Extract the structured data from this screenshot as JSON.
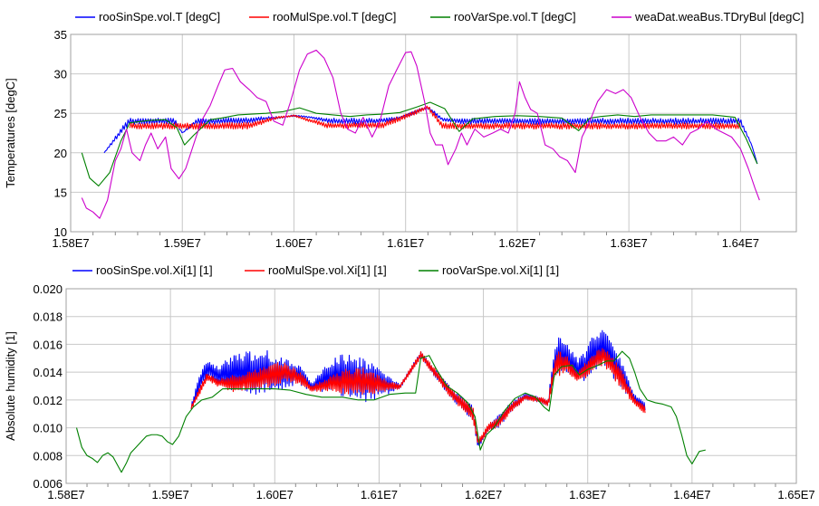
{
  "chart_data": [
    {
      "type": "line",
      "ylabel": "Temperatures [degC]",
      "xlim": [
        15800000,
        16450000
      ],
      "ylim": [
        10,
        35
      ],
      "xticks": [
        15800000,
        15900000,
        16000000,
        16100000,
        16200000,
        16300000,
        16400000
      ],
      "xtick_labels": [
        "1.58E7",
        "1.59E7",
        "1.60E7",
        "1.61E7",
        "1.62E7",
        "1.63E7",
        "1.64E7"
      ],
      "yticks": [
        10,
        15,
        20,
        25,
        30,
        35
      ],
      "ytick_labels": [
        "10",
        "15",
        "20",
        "25",
        "30",
        "35"
      ],
      "grid": true,
      "legend_position": "top",
      "series": [
        {
          "name": "rooSinSpe.vol.T [degC]",
          "color": "#0000ff",
          "envelope": true,
          "x": [
            15830000,
            15850000,
            15853000,
            15880000,
            15893000,
            15900000,
            15913000,
            15930000,
            15960000,
            15970000,
            15985000,
            16000000,
            16015000,
            16030000,
            16033000,
            16050000,
            16065000,
            16080000,
            16095000,
            16120000,
            16133000,
            16150000,
            16180000,
            16210000,
            16240000,
            16260000,
            16270000,
            16280000,
            16300000,
            16330000,
            16350000,
            16380000,
            16400000,
            16410000,
            16415000
          ],
          "low": [
            20.0,
            23.0,
            23.6,
            23.6,
            23.6,
            22.5,
            23.6,
            23.6,
            23.7,
            24.0,
            24.3,
            24.6,
            24.4,
            23.8,
            23.6,
            23.6,
            23.6,
            23.8,
            24.3,
            25.5,
            24.0,
            23.6,
            23.6,
            23.6,
            23.6,
            23.6,
            23.6,
            23.6,
            23.6,
            23.6,
            23.6,
            23.6,
            23.6,
            21.0,
            18.6
          ],
          "high": [
            20.0,
            24.2,
            24.4,
            24.4,
            24.4,
            22.5,
            24.4,
            24.4,
            24.5,
            24.6,
            24.6,
            24.8,
            24.6,
            24.4,
            24.4,
            24.4,
            24.4,
            24.4,
            24.6,
            26.0,
            24.4,
            24.4,
            24.4,
            24.4,
            24.4,
            24.4,
            24.4,
            24.4,
            24.4,
            24.4,
            24.4,
            24.4,
            24.4,
            21.0,
            18.6
          ]
        },
        {
          "name": "rooMulSpe.vol.T [degC]",
          "color": "#ff0000",
          "envelope": true,
          "x": [
            15853000,
            15880000,
            15893000,
            15913000,
            15960000,
            15985000,
            16000000,
            16030000,
            16050000,
            16080000,
            16120000,
            16133000,
            16150000,
            16200000,
            16260000,
            16300000,
            16350000,
            16400000
          ],
          "low": [
            23.0,
            23.0,
            23.0,
            23.0,
            23.0,
            24.3,
            24.6,
            23.1,
            23.1,
            23.1,
            25.5,
            23.0,
            23.0,
            23.0,
            23.0,
            23.0,
            23.0,
            23.0
          ],
          "high": [
            23.8,
            23.8,
            23.8,
            23.8,
            23.9,
            24.6,
            24.8,
            23.8,
            23.8,
            23.9,
            26.0,
            23.8,
            23.8,
            23.8,
            23.8,
            23.8,
            23.8,
            23.8
          ]
        },
        {
          "name": "rooVarSpe.vol.T [degC]",
          "color": "#008000",
          "envelope": false,
          "x": [
            15810000,
            15817000,
            15825000,
            15835000,
            15845000,
            15853000,
            15870000,
            15885000,
            15895000,
            15902000,
            15910000,
            15925000,
            15935000,
            15950000,
            15962000,
            15975000,
            15990000,
            16005000,
            16020000,
            16035000,
            16050000,
            16065000,
            16080000,
            16095000,
            16110000,
            16122000,
            16135000,
            16148000,
            16160000,
            16180000,
            16200000,
            16220000,
            16240000,
            16255000,
            16265000,
            16275000,
            16290000,
            16305000,
            16320000,
            16345000,
            16375000,
            16395000,
            16405000,
            16415000
          ],
          "y": [
            20.0,
            16.8,
            15.8,
            17.5,
            21.5,
            23.8,
            24.1,
            24.2,
            23.2,
            21.0,
            22.2,
            24.2,
            24.4,
            24.8,
            24.9,
            25.0,
            25.2,
            25.7,
            25.0,
            24.8,
            24.6,
            24.8,
            24.9,
            25.1,
            25.8,
            26.4,
            25.6,
            22.7,
            24.3,
            24.6,
            24.7,
            24.6,
            24.4,
            22.8,
            24.4,
            24.6,
            24.8,
            24.6,
            24.8,
            24.8,
            24.8,
            24.5,
            21.8,
            18.6
          ]
        },
        {
          "name": "weaDat.weaBus.TDryBul [degC]",
          "color": "#cc00cc",
          "envelope": false,
          "x": [
            15810000,
            15814000,
            15820000,
            15826000,
            15833000,
            15840000,
            15845000,
            15850000,
            15855000,
            15862000,
            15867000,
            15872000,
            15878000,
            15885000,
            15890000,
            15897000,
            15903000,
            15910000,
            15917000,
            15925000,
            15932000,
            15938000,
            15945000,
            15952000,
            15960000,
            15967000,
            15975000,
            15982000,
            15990000,
            15997000,
            16005000,
            16012000,
            16020000,
            16027000,
            16035000,
            16042000,
            16048000,
            16055000,
            16062000,
            16070000,
            16077000,
            16085000,
            16092000,
            16100000,
            16105000,
            16110000,
            16117000,
            16122000,
            16127000,
            16133000,
            16138000,
            16145000,
            16150000,
            16155000,
            16162000,
            16170000,
            16178000,
            16185000,
            16192000,
            16198000,
            16202000,
            16207000,
            16212000,
            16218000,
            16225000,
            16232000,
            16238000,
            16245000,
            16252000,
            16258000,
            16265000,
            16272000,
            16280000,
            16288000,
            16295000,
            16302000,
            16310000,
            16318000,
            16325000,
            16333000,
            16340000,
            16348000,
            16355000,
            16362000,
            16370000,
            16378000,
            16385000,
            16392000,
            16400000,
            16407000,
            16413000,
            16417000
          ],
          "y": [
            14.3,
            13.0,
            12.5,
            11.7,
            14.0,
            19.0,
            20.5,
            23.0,
            20.0,
            19.0,
            21.0,
            22.5,
            20.5,
            22.0,
            18.0,
            16.7,
            18.0,
            21.0,
            24.0,
            26.0,
            28.5,
            30.5,
            30.7,
            29.0,
            28.0,
            27.0,
            26.5,
            24.0,
            23.5,
            26.5,
            30.5,
            32.5,
            33.0,
            32.0,
            29.5,
            25.0,
            23.0,
            22.5,
            24.5,
            22.0,
            24.0,
            28.5,
            30.5,
            32.7,
            32.8,
            31.0,
            26.5,
            22.5,
            21.0,
            21.0,
            18.5,
            20.5,
            22.5,
            21.0,
            23.0,
            22.0,
            22.5,
            23.0,
            22.5,
            25.0,
            29.0,
            27.0,
            25.5,
            25.0,
            21.0,
            20.5,
            19.5,
            19.0,
            17.5,
            22.0,
            24.0,
            26.5,
            28.0,
            27.5,
            28.0,
            27.0,
            24.5,
            22.5,
            21.5,
            21.5,
            22.0,
            21.0,
            22.5,
            23.0,
            24.0,
            23.0,
            22.5,
            22.0,
            20.5,
            18.0,
            15.5,
            14.0
          ]
        }
      ]
    },
    {
      "type": "line",
      "ylabel": "Absolute humidity [1]",
      "xlim": [
        15800000,
        16500000
      ],
      "ylim": [
        0.006,
        0.02
      ],
      "xticks": [
        15800000,
        15900000,
        16000000,
        16100000,
        16200000,
        16300000,
        16400000,
        16500000
      ],
      "xtick_labels": [
        "1.58E7",
        "1.59E7",
        "1.60E7",
        "1.61E7",
        "1.62E7",
        "1.63E7",
        "1.64E7",
        "1.65E7"
      ],
      "yticks": [
        0.006,
        0.008,
        0.01,
        0.012,
        0.014,
        0.016,
        0.018,
        0.02
      ],
      "ytick_labels": [
        "0.006",
        "0.008",
        "0.010",
        "0.012",
        "0.014",
        "0.016",
        "0.018",
        "0.020"
      ],
      "grid": true,
      "legend_position": "top",
      "series": [
        {
          "name": "rooSinSpe.vol.Xi[1] [1]",
          "color": "#0000ff",
          "envelope": true,
          "x": [
            15920000,
            15930000,
            15935000,
            15945000,
            15960000,
            15975000,
            15990000,
            16000000,
            16012000,
            16025000,
            16035000,
            16055000,
            16070000,
            16085000,
            16095000,
            16105000,
            16120000,
            16140000,
            16170000,
            16190000,
            16195000,
            16205000,
            16215000,
            16225000,
            16240000,
            16255000,
            16262000,
            16268000,
            16272000,
            16280000,
            16290000,
            16297000,
            16305000,
            16315000,
            16330000,
            16345000,
            16355000
          ],
          "low": [
            0.0113,
            0.0128,
            0.0136,
            0.0132,
            0.0126,
            0.0124,
            0.0124,
            0.0124,
            0.013,
            0.013,
            0.0126,
            0.0126,
            0.012,
            0.0118,
            0.012,
            0.0123,
            0.0128,
            0.015,
            0.012,
            0.0105,
            0.0085,
            0.0098,
            0.01,
            0.011,
            0.012,
            0.0118,
            0.0115,
            0.0135,
            0.014,
            0.014,
            0.0135,
            0.0133,
            0.014,
            0.0145,
            0.013,
            0.0118,
            0.0111
          ],
          "high": [
            0.0118,
            0.0143,
            0.015,
            0.0144,
            0.0153,
            0.0155,
            0.0157,
            0.0152,
            0.015,
            0.0144,
            0.0132,
            0.015,
            0.0154,
            0.015,
            0.0148,
            0.014,
            0.0131,
            0.0155,
            0.0128,
            0.0116,
            0.009,
            0.0102,
            0.011,
            0.0118,
            0.0125,
            0.0122,
            0.012,
            0.0158,
            0.0165,
            0.0162,
            0.015,
            0.0155,
            0.0168,
            0.0172,
            0.0152,
            0.0124,
            0.0118
          ]
        },
        {
          "name": "rooMulSpe.vol.Xi[1] [1]",
          "color": "#ff0000",
          "envelope": true,
          "x": [
            15920000,
            15930000,
            15935000,
            15945000,
            15960000,
            15975000,
            15990000,
            16000000,
            16012000,
            16025000,
            16035000,
            16055000,
            16070000,
            16085000,
            16095000,
            16105000,
            16120000,
            16140000,
            16170000,
            16190000,
            16195000,
            16205000,
            16215000,
            16225000,
            16240000,
            16255000,
            16262000,
            16268000,
            16272000,
            16280000,
            16290000,
            16297000,
            16305000,
            16315000,
            16330000,
            16345000,
            16355000
          ],
          "low": [
            0.0113,
            0.0126,
            0.0134,
            0.013,
            0.0126,
            0.0127,
            0.0128,
            0.013,
            0.0133,
            0.0131,
            0.0126,
            0.0126,
            0.0124,
            0.0124,
            0.0124,
            0.0126,
            0.0128,
            0.015,
            0.012,
            0.0105,
            0.0086,
            0.0098,
            0.01,
            0.011,
            0.012,
            0.0118,
            0.0115,
            0.0133,
            0.0137,
            0.014,
            0.0133,
            0.0135,
            0.0141,
            0.0145,
            0.013,
            0.0116,
            0.011
          ],
          "high": [
            0.0117,
            0.0132,
            0.014,
            0.0135,
            0.0138,
            0.0141,
            0.0145,
            0.0148,
            0.0146,
            0.014,
            0.013,
            0.0138,
            0.0143,
            0.0143,
            0.014,
            0.0135,
            0.0131,
            0.0155,
            0.0128,
            0.0115,
            0.0092,
            0.0103,
            0.0108,
            0.0117,
            0.0124,
            0.0122,
            0.012,
            0.015,
            0.0156,
            0.0152,
            0.014,
            0.0146,
            0.0154,
            0.0159,
            0.0145,
            0.0122,
            0.0116
          ]
        },
        {
          "name": "rooVarSpe.vol.Xi[1] [1]",
          "color": "#008000",
          "envelope": false,
          "x": [
            15810000,
            15815000,
            15820000,
            15825000,
            15830000,
            15835000,
            15840000,
            15845000,
            15853000,
            15858000,
            15862000,
            15867000,
            15872000,
            15877000,
            15882000,
            15887000,
            15892000,
            15897000,
            15902000,
            15908000,
            15915000,
            15922000,
            15930000,
            15940000,
            15950000,
            15965000,
            15985000,
            16000000,
            16015000,
            16030000,
            16045000,
            16065000,
            16080000,
            16095000,
            16110000,
            16125000,
            16135000,
            16140000,
            16148000,
            16155000,
            16165000,
            16175000,
            16185000,
            16192000,
            16197000,
            16203000,
            16210000,
            16220000,
            16230000,
            16240000,
            16250000,
            16258000,
            16263000,
            16268000,
            16275000,
            16285000,
            16292000,
            16300000,
            16310000,
            16318000,
            16325000,
            16333000,
            16340000,
            16345000,
            16350000,
            16357000,
            16365000,
            16372000,
            16380000,
            16385000,
            16390000,
            16395000,
            16400000,
            16407000,
            16413000
          ],
          "y": [
            0.01,
            0.0086,
            0.008,
            0.0078,
            0.0075,
            0.008,
            0.0082,
            0.0079,
            0.0068,
            0.0075,
            0.0082,
            0.0086,
            0.009,
            0.0094,
            0.0095,
            0.0095,
            0.0094,
            0.009,
            0.0088,
            0.0094,
            0.0108,
            0.0115,
            0.012,
            0.0122,
            0.0128,
            0.0128,
            0.0128,
            0.0128,
            0.0127,
            0.0124,
            0.0122,
            0.0122,
            0.012,
            0.012,
            0.0124,
            0.0125,
            0.0125,
            0.015,
            0.0152,
            0.0142,
            0.013,
            0.0125,
            0.0118,
            0.0108,
            0.0084,
            0.0095,
            0.01,
            0.0112,
            0.0121,
            0.0125,
            0.0122,
            0.0115,
            0.0112,
            0.0138,
            0.0144,
            0.0145,
            0.0138,
            0.0142,
            0.0145,
            0.0148,
            0.0148,
            0.0155,
            0.015,
            0.014,
            0.0128,
            0.012,
            0.0118,
            0.0117,
            0.0115,
            0.0108,
            0.0095,
            0.008,
            0.0074,
            0.0083,
            0.0084
          ]
        }
      ]
    }
  ]
}
